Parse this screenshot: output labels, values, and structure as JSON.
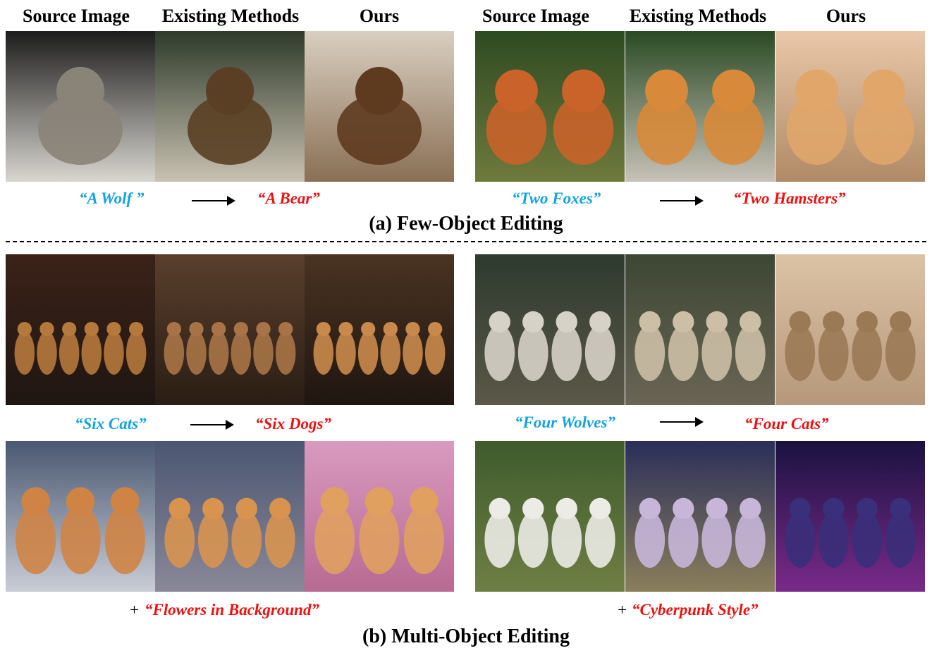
{
  "headers": {
    "left": [
      "Source Image",
      "Existing Methods",
      "Ours"
    ],
    "right": [
      "Source Image",
      "Existing Methods",
      "Ours"
    ]
  },
  "few_object": {
    "left": {
      "source_prompt": "A Wolf",
      "target_prompt": "A Bear"
    },
    "right": {
      "source_prompt": "Two Foxes",
      "target_prompt": "Two Hamsters"
    },
    "caption": "(a) Few-Object Editing"
  },
  "multi_object": {
    "row1_left": {
      "source_prompt": "Six Cats",
      "target_prompt": "Six Dogs"
    },
    "row1_right": {
      "source_prompt": "Four Wolves",
      "target_prompt": "Four Cats"
    },
    "row2_left": {
      "plus": "+",
      "edit_prompt": "Flowers in Background"
    },
    "row2_right": {
      "plus": "+",
      "edit_prompt": "Cyberpunk Style"
    },
    "caption": "(b) Multi-Object Editing"
  },
  "colors": {
    "source": "#12a3e3",
    "target": "#ee1111"
  },
  "images": [
    {
      "name": "wolf-source-image",
      "bg": [
        "#1c1c1c",
        "#d9d6d0"
      ],
      "fg": "#8a8378",
      "count": 1
    },
    {
      "name": "bear-existing-image",
      "bg": [
        "#2e3a2a",
        "#c9c2b2"
      ],
      "fg": "#5a3f24",
      "count": 1
    },
    {
      "name": "bear-ours-image",
      "bg": [
        "#d8cfc0",
        "#8a6f55"
      ],
      "fg": "#5e3b1f",
      "count": 1
    },
    {
      "name": "foxes-source-image",
      "bg": [
        "#2e4a22",
        "#6f7a3c"
      ],
      "fg": "#c9632a",
      "count": 2
    },
    {
      "name": "hamsters-existing-image",
      "bg": [
        "#2a4a24",
        "#c7c2b8"
      ],
      "fg": "#d88a3a",
      "count": 2
    },
    {
      "name": "hamsters-ours-image",
      "bg": [
        "#e9c7a8",
        "#b08a66"
      ],
      "fg": "#e0a66a",
      "count": 2
    },
    {
      "name": "cats-source-image",
      "bg": [
        "#3b2218",
        "#1f1612"
      ],
      "fg": "#b6793c",
      "count": 6
    },
    {
      "name": "dogs-existing-image",
      "bg": [
        "#5a3f2c",
        "#2a1d14"
      ],
      "fg": "#a87447",
      "count": 6
    },
    {
      "name": "dogs-ours-image",
      "bg": [
        "#4a3322",
        "#1f1610"
      ],
      "fg": "#c9894b",
      "count": 6
    },
    {
      "name": "wolves-source-image",
      "bg": [
        "#2d3a2e",
        "#5b5848"
      ],
      "fg": "#d7d2c8",
      "count": 4
    },
    {
      "name": "wolves-existing-image",
      "bg": [
        "#3c4733",
        "#6a6555"
      ],
      "fg": "#cdbfa6",
      "count": 4
    },
    {
      "name": "cats-ours-image",
      "bg": [
        "#dcc3a6",
        "#b6977a"
      ],
      "fg": "#9a7a55",
      "count": 4
    },
    {
      "name": "kittens-source-image",
      "bg": [
        "#4a5872",
        "#c9cdd6"
      ],
      "fg": "#cf8446",
      "count": 3
    },
    {
      "name": "kittens-existing-image",
      "bg": [
        "#4b5672",
        "#8a8898"
      ],
      "fg": "#d8944f",
      "count": 4
    },
    {
      "name": "kittens-ours-image",
      "bg": [
        "#d99ac0",
        "#b76a92"
      ],
      "fg": "#e0a060",
      "count": 3
    },
    {
      "name": "sheep-source-image",
      "bg": [
        "#3f5b2c",
        "#6e7f44"
      ],
      "fg": "#ecebe6",
      "count": 4
    },
    {
      "name": "sheep-existing-image",
      "bg": [
        "#2a2e5a",
        "#8a7f5a"
      ],
      "fg": "#c8b6d8",
      "count": 4
    },
    {
      "name": "sheep-ours-image",
      "bg": [
        "#1a1240",
        "#7a2a8a"
      ],
      "fg": "#3a2f7a",
      "count": 4
    }
  ]
}
